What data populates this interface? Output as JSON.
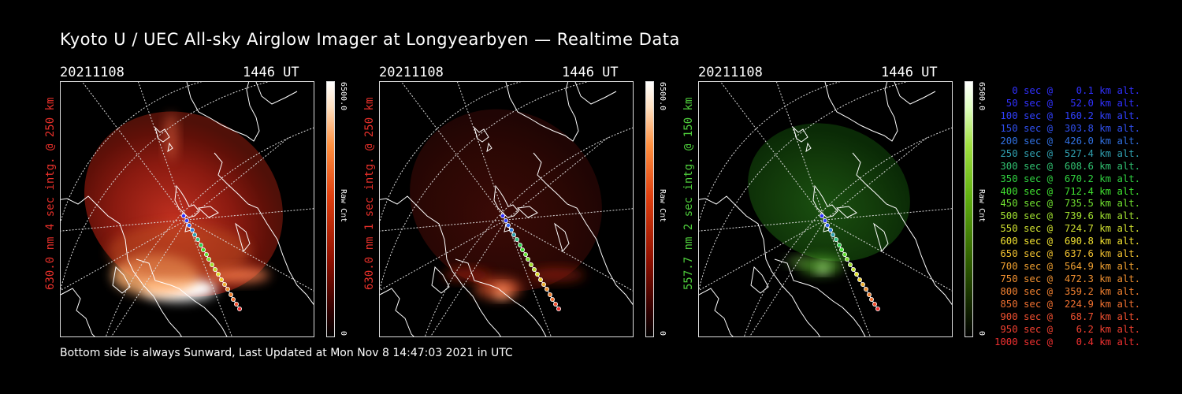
{
  "title": "Kyoto U / UEC All-sky Airglow Imager at Longyearbyen — Realtime Data",
  "panels": [
    {
      "date": "20211108",
      "ut": "1446 UT",
      "label": "630.0 nm 4 sec intg. @ 250 km",
      "label_color": "#e8302a",
      "cbar_max": "6500.0",
      "cbar_min": "0",
      "cbar_label": "Raw Cnt",
      "theme": "red-bright"
    },
    {
      "date": "20211108",
      "ut": "1446 UT",
      "label": "630.0 nm 1 sec intg. @ 250 km",
      "label_color": "#e8302a",
      "cbar_max": "6500.0",
      "cbar_min": "0",
      "cbar_label": "Raw Cnt",
      "theme": "red-dim"
    },
    {
      "date": "20211108",
      "ut": "1446 UT",
      "label": "557.7 nm 2 sec intg. @ 150 km",
      "label_color": "#4fcf3c",
      "cbar_max": "6500.0",
      "cbar_min": "0",
      "cbar_label": "Raw Cnt",
      "theme": "green"
    }
  ],
  "footer": "Bottom side is always Sunward, Last Updated at Mon Nov  8 14:47:03 2021 in UTC",
  "legend": [
    {
      "text": "   0 sec @    0.1 km alt.",
      "color": "#3030ff"
    },
    {
      "text": "  50 sec @   52.0 km alt.",
      "color": "#3030ff"
    },
    {
      "text": " 100 sec @  160.2 km alt.",
      "color": "#3040ff"
    },
    {
      "text": " 150 sec @  303.8 km alt.",
      "color": "#3050f0"
    },
    {
      "text": " 200 sec @  426.0 km alt.",
      "color": "#3070e0"
    },
    {
      "text": " 250 sec @  527.4 km alt.",
      "color": "#30a0b0"
    },
    {
      "text": " 300 sec @  608.6 km alt.",
      "color": "#30c070"
    },
    {
      "text": " 350 sec @  670.2 km alt.",
      "color": "#30d040"
    },
    {
      "text": " 400 sec @  712.4 km alt.",
      "color": "#40e030"
    },
    {
      "text": " 450 sec @  735.5 km alt.",
      "color": "#70e030"
    },
    {
      "text": " 500 sec @  739.6 km alt.",
      "color": "#a0e030"
    },
    {
      "text": " 550 sec @  724.7 km alt.",
      "color": "#d0e030"
    },
    {
      "text": " 600 sec @  690.8 km alt.",
      "color": "#f0e030"
    },
    {
      "text": " 650 sec @  637.6 km alt.",
      "color": "#f0c030"
    },
    {
      "text": " 700 sec @  564.9 km alt.",
      "color": "#f0a030"
    },
    {
      "text": " 750 sec @  472.3 km alt.",
      "color": "#f09030"
    },
    {
      "text": " 800 sec @  359.2 km alt.",
      "color": "#f08030"
    },
    {
      "text": " 850 sec @  224.9 km alt.",
      "color": "#f07030"
    },
    {
      "text": " 900 sec @   68.7 km alt.",
      "color": "#f05030"
    },
    {
      "text": " 950 sec @    6.2 km alt.",
      "color": "#f04030"
    },
    {
      "text": "1000 sec @    0.4 km alt.",
      "color": "#f03030"
    }
  ]
}
